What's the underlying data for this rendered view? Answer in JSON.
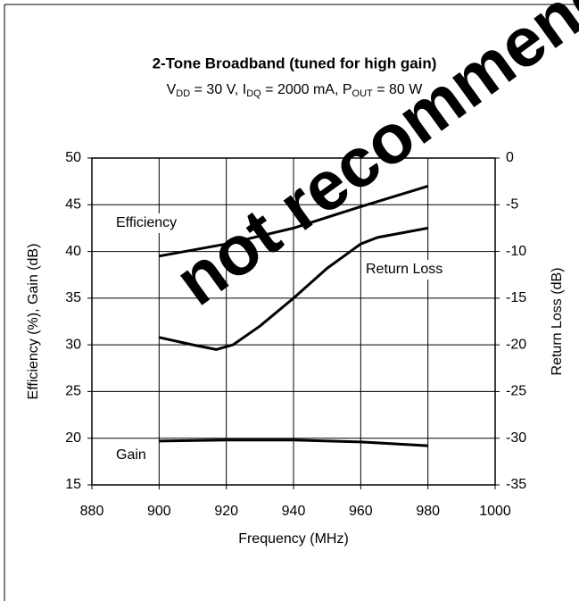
{
  "chart_data": {
    "type": "line",
    "title": "2-Tone Broadband (tuned for high gain)",
    "subtitle": [
      {
        "text": "V",
        "sub": false
      },
      {
        "text": "DD",
        "sub": true
      },
      {
        "text": " = 30 V, I",
        "sub": false
      },
      {
        "text": "DQ",
        "sub": true
      },
      {
        "text": " = 2000 mA, P",
        "sub": false
      },
      {
        "text": "OUT",
        "sub": true
      },
      {
        "text": " = 80 W",
        "sub": false
      }
    ],
    "watermark": "not recommended",
    "x_label": "Frequency (MHz)",
    "y_label": "Efficiency (%), Gain (dB)",
    "y2_label": "Return Loss (dB)",
    "xlim": [
      880,
      1000
    ],
    "xticks": [
      880,
      900,
      920,
      940,
      960,
      980,
      1000
    ],
    "ylim": [
      15,
      50
    ],
    "yticks": [
      15,
      20,
      25,
      30,
      35,
      40,
      45,
      50
    ],
    "y2lim": [
      -35,
      0
    ],
    "y2ticks": [
      -35,
      -30,
      -25,
      -20,
      -15,
      -10,
      -5,
      0
    ],
    "grid": true,
    "series": [
      {
        "name": "Efficiency",
        "color": "#000000",
        "x": [
          900,
          920,
          940,
          960,
          980
        ],
        "values": [
          39.5,
          40.8,
          42.5,
          44.8,
          47
        ]
      },
      {
        "name": "Return Loss",
        "color": "#000000",
        "axis": "y2",
        "x": [
          900,
          910,
          917,
          922,
          930,
          940,
          950,
          960,
          965,
          980
        ],
        "values": [
          -19.2,
          -20,
          -20.5,
          -20,
          -18,
          -15,
          -11.8,
          -9.2,
          -8.5,
          -7.5
        ]
      },
      {
        "name": "Gain",
        "color": "#000000",
        "x": [
          900,
          920,
          940,
          960,
          980
        ],
        "values": [
          19.7,
          19.8,
          19.8,
          19.6,
          19.2
        ]
      }
    ]
  }
}
